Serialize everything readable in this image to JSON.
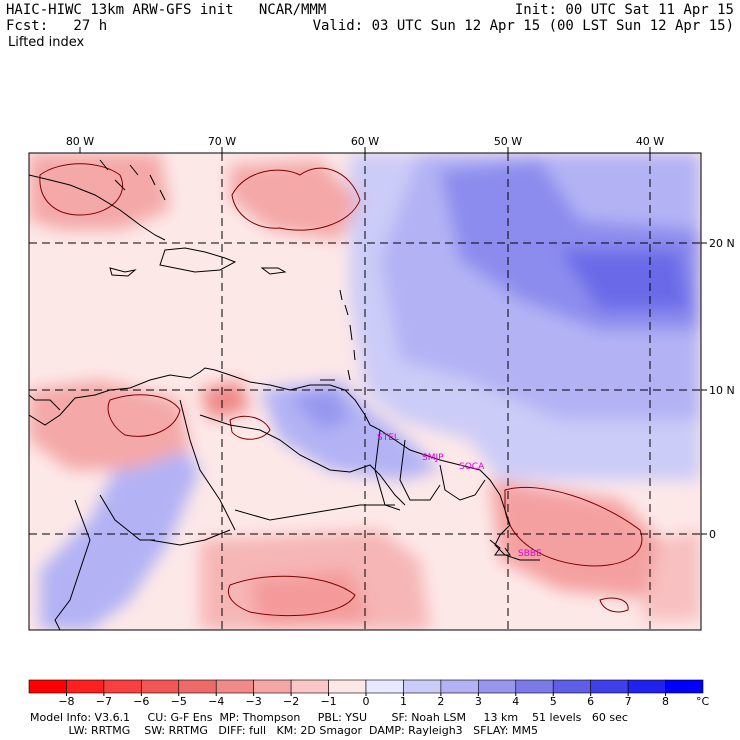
{
  "header": {
    "title": "HAIC-HIWC 13km ARW-GFS init   NCAR/MMM",
    "forecast": "Fcst:   27 h",
    "field": "Lifted index",
    "init": "Init: 00 UTC Sat 11 Apr 15",
    "valid": "Valid: 03 UTC Sun 12 Apr 15 (00 LST Sun 12 Apr 15)"
  },
  "map": {
    "longitude_labels": [
      "80 W",
      "70 W",
      "60 W",
      "50 W",
      "40 W"
    ],
    "latitude_labels": [
      "20 N",
      "10 N",
      "0"
    ],
    "station_labels": [
      "STEL",
      "SMJP",
      "SOCA",
      "SBBE"
    ],
    "colors": {
      "station": "#e000e0",
      "coast": "#000000",
      "grid": "#000000",
      "contour": "#800000"
    }
  },
  "colorbar": {
    "ticks": [
      "-8",
      "-7",
      "-6",
      "-5",
      "-4",
      "-3",
      "-2",
      "-1",
      "0",
      "1",
      "2",
      "3",
      "4",
      "5",
      "6",
      "7",
      "8"
    ],
    "unit": "°C",
    "colors": [
      "#ff0000",
      "#ff2020",
      "#f74040",
      "#f25656",
      "#ee6a6a",
      "#f28a8a",
      "#f6a6a6",
      "#fac6c6",
      "#fde6e6",
      "#e8e8ff",
      "#ccccf8",
      "#b2b2f5",
      "#9696ef",
      "#7a7ae8",
      "#5e5ee6",
      "#4040e8",
      "#2222ee",
      "#0000ff"
    ]
  },
  "footer": {
    "line1": "Model Info: V3.6.1     CU: G-F Ens  MP: Thompson     PBL: YSU       SF: Noah LSM     13 km    51 levels   60 sec",
    "line2": "           LW: RRTMG    SW: RRTMG   DIFF: full   KM: 2D Smagor  DAMP: Rayleigh3   SFLAY: MM5"
  }
}
